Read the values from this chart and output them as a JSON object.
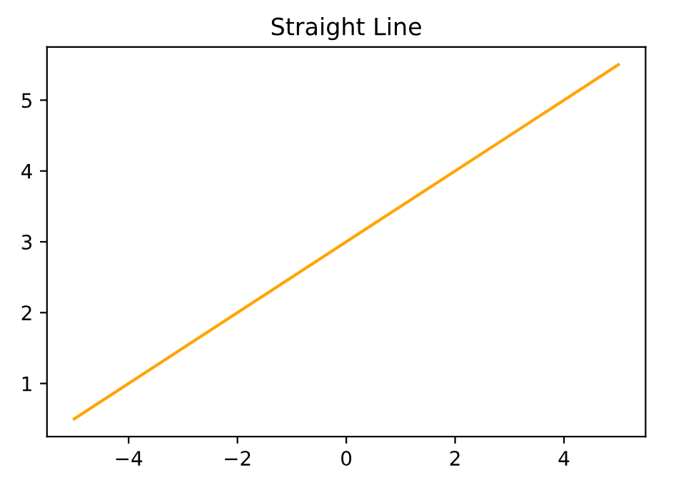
{
  "chart_data": {
    "type": "line",
    "title": "Straight Line",
    "x": [
      -5,
      5
    ],
    "series": [
      {
        "color": "#ffa500",
        "values": [
          0.5,
          5.5
        ]
      }
    ],
    "xlim": [
      -5.5,
      5.5
    ],
    "xticks": [
      {
        "value": -4,
        "label": "−4"
      },
      {
        "value": -2,
        "label": "−2"
      },
      0,
      2,
      4
    ],
    "ylim": [
      0.25,
      5.75
    ],
    "yticks": [
      1,
      2,
      3,
      4,
      5
    ],
    "grid": false,
    "legend": false,
    "marker": "none",
    "line_style": "solid"
  }
}
